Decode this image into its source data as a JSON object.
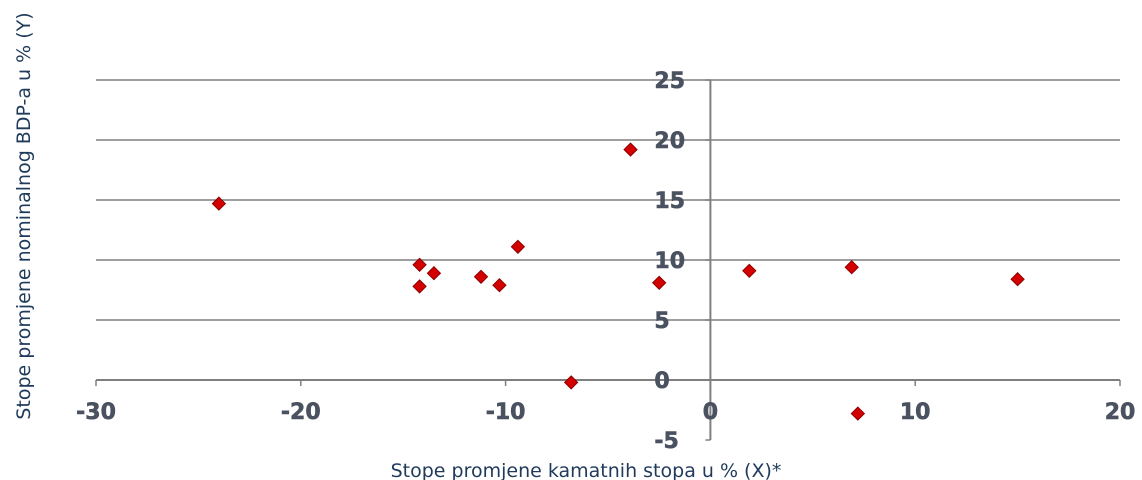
{
  "chart_data": {
    "type": "scatter",
    "title": "",
    "xlabel": "Stope promjene kamatnih stopa u % (X)*",
    "ylabel": "Stope promjene nominalnog BDP-a u % (Y)",
    "xlim": [
      -30,
      20
    ],
    "ylim": [
      -5,
      25
    ],
    "xticks": [
      -30,
      -20,
      -10,
      0,
      10,
      20
    ],
    "yticks": [
      -5,
      0,
      5,
      10,
      15,
      20,
      25
    ],
    "grid": "horizontal",
    "legend": "none",
    "colors": {
      "point": "#d40000",
      "point_edge": "#8a0000",
      "grid": "#7f7f7f",
      "tick_text": "#4a5160",
      "axis_title": "#1f3a5a"
    },
    "points": [
      {
        "x": -24.0,
        "y": 14.7
      },
      {
        "x": -14.2,
        "y": 9.6
      },
      {
        "x": -14.2,
        "y": 7.8
      },
      {
        "x": -13.5,
        "y": 8.9
      },
      {
        "x": -11.2,
        "y": 8.6
      },
      {
        "x": -10.3,
        "y": 7.9
      },
      {
        "x": -9.4,
        "y": 11.1
      },
      {
        "x": -6.8,
        "y": -0.2
      },
      {
        "x": -3.9,
        "y": 19.2
      },
      {
        "x": -2.5,
        "y": 8.1
      },
      {
        "x": 1.9,
        "y": 9.1
      },
      {
        "x": 6.9,
        "y": 9.4
      },
      {
        "x": 7.2,
        "y": -2.8
      },
      {
        "x": 15.0,
        "y": 8.4
      }
    ]
  }
}
